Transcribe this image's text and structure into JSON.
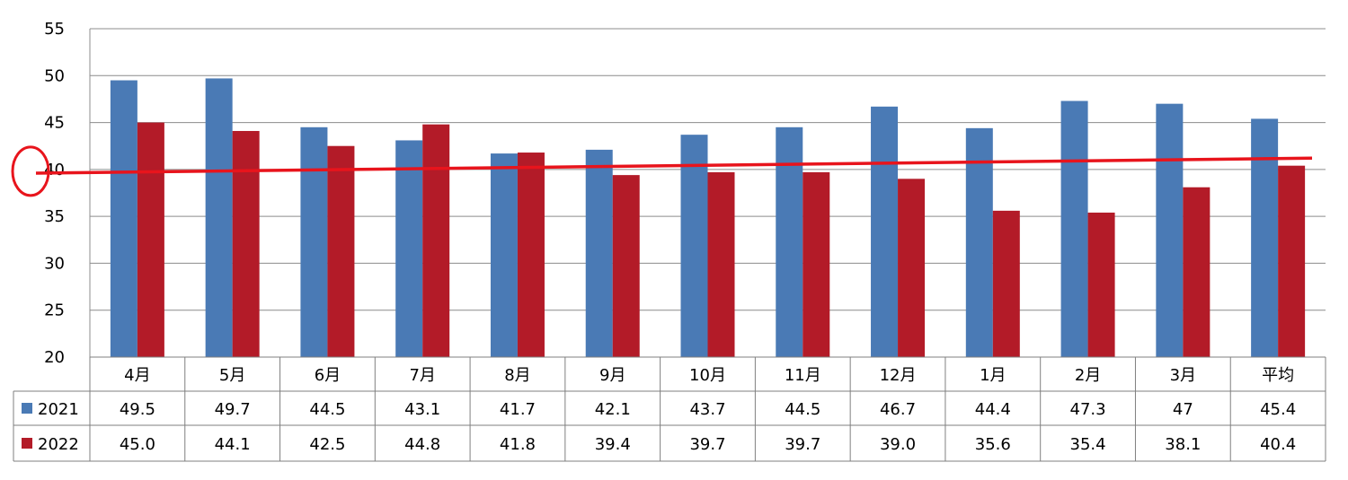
{
  "colors": {
    "series_2021": "#4a7ab5",
    "series_2022": "#b31b28",
    "trend_line": "#e8141c",
    "grid": "#8c8c8c"
  },
  "chart_data": {
    "type": "bar",
    "categories": [
      "4月",
      "5月",
      "6月",
      "7月",
      "8月",
      "9月",
      "10月",
      "11月",
      "12月",
      "1月",
      "2月",
      "3月",
      "平均"
    ],
    "ylim": [
      20,
      55
    ],
    "yticks": [
      "20",
      "25",
      "30",
      "35",
      "40",
      "45",
      "50",
      "55"
    ],
    "grid": true,
    "legend_placement": "data-table-left",
    "series": [
      {
        "name": "2021",
        "values": [
          49.5,
          49.7,
          44.5,
          43.1,
          41.7,
          42.1,
          43.7,
          44.5,
          46.7,
          44.4,
          47.3,
          47,
          45.4
        ],
        "labels": [
          "49.5",
          "49.7",
          "44.5",
          "43.1",
          "41.7",
          "42.1",
          "43.7",
          "44.5",
          "46.7",
          "44.4",
          "47.3",
          "47",
          "45.4"
        ]
      },
      {
        "name": "2022",
        "values": [
          45.0,
          44.1,
          42.5,
          44.8,
          41.8,
          39.4,
          39.7,
          39.7,
          39.0,
          35.6,
          35.4,
          38.1,
          40.4
        ],
        "labels": [
          "45.0",
          "44.1",
          "42.5",
          "44.8",
          "41.8",
          "39.4",
          "39.7",
          "39.7",
          "39.0",
          "35.6",
          "35.4",
          "38.1",
          "40.4"
        ]
      }
    ],
    "annotations": {
      "trend_line": {
        "start_value": 39.6,
        "end_value": 41.2
      },
      "circle_marker_value": 40
    }
  }
}
